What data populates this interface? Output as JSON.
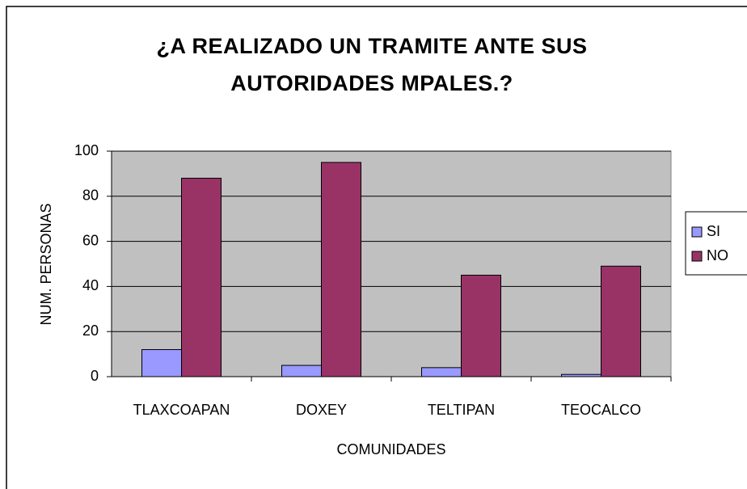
{
  "chart_data": {
    "type": "bar",
    "title": "¿A REALIZADO UN TRAMITE ANTE SUS AUTORIDADES MPALES.?",
    "x_label": "COMUNIDADES",
    "y_label": "NUM. PERSONAS",
    "categories": [
      "TLAXCOAPAN",
      "DOXEY",
      "TELTIPAN",
      "TEOCALCO"
    ],
    "series": [
      {
        "name": "SI",
        "color": "#9999ff",
        "values": [
          12,
          5,
          4,
          1
        ]
      },
      {
        "name": "NO",
        "color": "#993366",
        "values": [
          88,
          95,
          45,
          49
        ]
      }
    ],
    "ylim": [
      0,
      100
    ],
    "yticks": [
      0,
      20,
      40,
      60,
      80,
      100
    ],
    "grid": true,
    "legend": "right"
  }
}
